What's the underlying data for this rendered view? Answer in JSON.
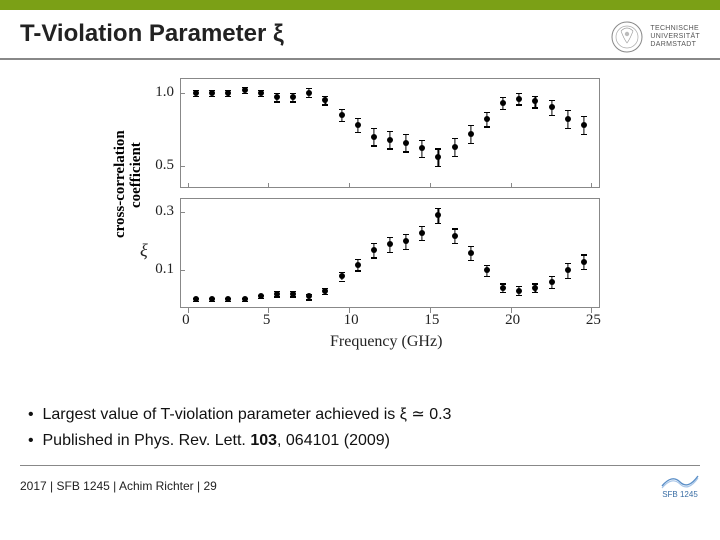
{
  "header": {
    "title": "T-Violation Parameter ξ",
    "logo_line1": "TECHNISCHE",
    "logo_line2": "UNIVERSITÄT",
    "logo_line3": "DARMSTADT"
  },
  "chart": {
    "y_label_line1": "cross-correlation",
    "y_label_line2": "coefficient",
    "x_label": "Frequency (GHz)",
    "xlim": [
      -0.5,
      25.5
    ],
    "x_ticks": [
      0,
      5,
      10,
      15,
      20,
      25
    ],
    "panel_border_color": "#888888",
    "tick_font_size": 15,
    "label_font_size": 16,
    "background_color": "#ffffff",
    "top_panel": {
      "ylim": [
        0.35,
        1.1
      ],
      "y_ticks": [
        0.5,
        1.0
      ],
      "y_tick_labels": [
        "0.5",
        "1.0"
      ],
      "marker_color": "#000000",
      "marker_size": 6,
      "points": [
        {
          "x": 0.5,
          "y": 1.0,
          "err": 0.02
        },
        {
          "x": 1.5,
          "y": 1.0,
          "err": 0.02
        },
        {
          "x": 2.5,
          "y": 1.0,
          "err": 0.02
        },
        {
          "x": 3.5,
          "y": 1.02,
          "err": 0.02
        },
        {
          "x": 4.5,
          "y": 1.0,
          "err": 0.02
        },
        {
          "x": 5.5,
          "y": 0.97,
          "err": 0.03
        },
        {
          "x": 6.5,
          "y": 0.97,
          "err": 0.03
        },
        {
          "x": 7.5,
          "y": 1.0,
          "err": 0.03
        },
        {
          "x": 8.5,
          "y": 0.95,
          "err": 0.03
        },
        {
          "x": 9.5,
          "y": 0.85,
          "err": 0.04
        },
        {
          "x": 10.5,
          "y": 0.78,
          "err": 0.05
        },
        {
          "x": 11.5,
          "y": 0.7,
          "err": 0.06
        },
        {
          "x": 12.5,
          "y": 0.68,
          "err": 0.06
        },
        {
          "x": 13.5,
          "y": 0.66,
          "err": 0.06
        },
        {
          "x": 14.5,
          "y": 0.62,
          "err": 0.06
        },
        {
          "x": 15.5,
          "y": 0.56,
          "err": 0.06
        },
        {
          "x": 16.5,
          "y": 0.63,
          "err": 0.06
        },
        {
          "x": 17.5,
          "y": 0.72,
          "err": 0.06
        },
        {
          "x": 18.5,
          "y": 0.82,
          "err": 0.05
        },
        {
          "x": 19.5,
          "y": 0.93,
          "err": 0.04
        },
        {
          "x": 20.5,
          "y": 0.96,
          "err": 0.04
        },
        {
          "x": 21.5,
          "y": 0.94,
          "err": 0.04
        },
        {
          "x": 22.5,
          "y": 0.9,
          "err": 0.05
        },
        {
          "x": 23.5,
          "y": 0.82,
          "err": 0.06
        },
        {
          "x": 24.5,
          "y": 0.78,
          "err": 0.06
        }
      ]
    },
    "bottom_panel": {
      "y_label": "ξ",
      "ylim": [
        -0.03,
        0.35
      ],
      "y_ticks": [
        0.1,
        0.3
      ],
      "y_tick_labels": [
        "0.1",
        "0.3"
      ],
      "marker_color": "#000000",
      "marker_size": 6,
      "points": [
        {
          "x": 0.5,
          "y": 0.0,
          "err": 0.005
        },
        {
          "x": 1.5,
          "y": 0.0,
          "err": 0.005
        },
        {
          "x": 2.5,
          "y": 0.0,
          "err": 0.005
        },
        {
          "x": 3.5,
          "y": 0.0,
          "err": 0.005
        },
        {
          "x": 4.5,
          "y": 0.01,
          "err": 0.005
        },
        {
          "x": 5.5,
          "y": 0.02,
          "err": 0.01
        },
        {
          "x": 6.5,
          "y": 0.02,
          "err": 0.01
        },
        {
          "x": 7.5,
          "y": 0.01,
          "err": 0.01
        },
        {
          "x": 8.5,
          "y": 0.03,
          "err": 0.01
        },
        {
          "x": 9.5,
          "y": 0.08,
          "err": 0.015
        },
        {
          "x": 10.5,
          "y": 0.12,
          "err": 0.02
        },
        {
          "x": 11.5,
          "y": 0.17,
          "err": 0.025
        },
        {
          "x": 12.5,
          "y": 0.19,
          "err": 0.025
        },
        {
          "x": 13.5,
          "y": 0.2,
          "err": 0.025
        },
        {
          "x": 14.5,
          "y": 0.23,
          "err": 0.025
        },
        {
          "x": 15.5,
          "y": 0.29,
          "err": 0.025
        },
        {
          "x": 16.5,
          "y": 0.22,
          "err": 0.025
        },
        {
          "x": 17.5,
          "y": 0.16,
          "err": 0.025
        },
        {
          "x": 18.5,
          "y": 0.1,
          "err": 0.02
        },
        {
          "x": 19.5,
          "y": 0.04,
          "err": 0.015
        },
        {
          "x": 20.5,
          "y": 0.03,
          "err": 0.015
        },
        {
          "x": 21.5,
          "y": 0.04,
          "err": 0.015
        },
        {
          "x": 22.5,
          "y": 0.06,
          "err": 0.02
        },
        {
          "x": 23.5,
          "y": 0.1,
          "err": 0.025
        },
        {
          "x": 24.5,
          "y": 0.13,
          "err": 0.025
        }
      ]
    }
  },
  "bullets": {
    "b1_pre": "Largest value of T-violation parameter achieved is ξ",
    "b1_post": " 0.3",
    "b1_symbol": "≃",
    "b2": "Published in Phys. Rev. Lett. 103, 064101 (2009)"
  },
  "footer": {
    "text": "2017 | SFB 1245 | Achim Richter | 29",
    "badge": "SFB 1245"
  },
  "colors": {
    "accent_green": "#7ba016",
    "rule_gray": "#888888",
    "text": "#111111"
  }
}
